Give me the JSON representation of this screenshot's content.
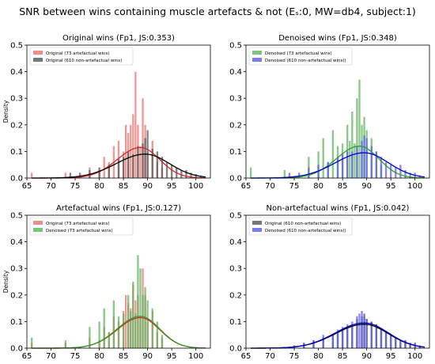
{
  "figure": {
    "title": "SNR between wins containing muscle artefacts & not (Eₛ:0, MW=db4, subject:1)"
  },
  "colors": {
    "original": "#d62728",
    "original_fill": "#e8726f",
    "nonartefact": "#000000",
    "nonartefact_fill": "#555555",
    "denoised": "#2ca02c",
    "denoised_fill": "#5db35d",
    "denoised_non": "#0000cc",
    "denoised_non_fill": "#5b5bea"
  },
  "chart_data": [
    {
      "type": "histogram",
      "title": "Original wins (Fp1, JS:0.353)",
      "ylabel": "Density",
      "xlim": [
        65,
        103
      ],
      "ylim": [
        0,
        0.5
      ],
      "xticks": [
        65,
        70,
        75,
        80,
        85,
        90,
        95,
        100
      ],
      "yticks": [
        0.0,
        0.1,
        0.2,
        0.3,
        0.4,
        0.5
      ],
      "legend_position": "top-left",
      "series": [
        {
          "name": "Original (73 artefactual wins)",
          "color_key": "original",
          "kde": {
            "mean": 88.5,
            "sd": 4.0,
            "peak": 0.115
          },
          "bars": [
            [
              66,
              0.02
            ],
            [
              73,
              0.02
            ],
            [
              78,
              0.04
            ],
            [
              80,
              0.03
            ],
            [
              81,
              0.08
            ],
            [
              82,
              0.06
            ],
            [
              83,
              0.12
            ],
            [
              84,
              0.14
            ],
            [
              85,
              0.1
            ],
            [
              85.5,
              0.2
            ],
            [
              86,
              0.17
            ],
            [
              86.5,
              0.2
            ],
            [
              87,
              0.24
            ],
            [
              87.5,
              0.4
            ],
            [
              88,
              0.2
            ],
            [
              88.5,
              0.12
            ],
            [
              89,
              0.3
            ],
            [
              89.5,
              0.2
            ],
            [
              90,
              0.1
            ],
            [
              91,
              0.14
            ],
            [
              92,
              0.06
            ],
            [
              93,
              0.04
            ]
          ]
        },
        {
          "name": "Original (610 non-artefactual wins)",
          "color_key": "nonartefact",
          "kde": {
            "mean": 89.5,
            "sd": 5.0,
            "peak": 0.09
          },
          "bars": [
            [
              74,
              0.02
            ],
            [
              76,
              0.02
            ],
            [
              78,
              0.03
            ],
            [
              80,
              0.04
            ],
            [
              82,
              0.05
            ],
            [
              84,
              0.07
            ],
            [
              85,
              0.08
            ],
            [
              86,
              0.1
            ],
            [
              87,
              0.09
            ],
            [
              88,
              0.12
            ],
            [
              89,
              0.13
            ],
            [
              89.5,
              0.15
            ],
            [
              90,
              0.18
            ],
            [
              91,
              0.11
            ],
            [
              92,
              0.1
            ],
            [
              93,
              0.08
            ],
            [
              94,
              0.06
            ],
            [
              95,
              0.05
            ],
            [
              96,
              0.04
            ],
            [
              97,
              0.03
            ],
            [
              98,
              0.03
            ],
            [
              99,
              0.02
            ],
            [
              100,
              0.015
            ],
            [
              101,
              0.01
            ]
          ]
        }
      ]
    },
    {
      "type": "histogram",
      "title": "Denoised wins (Fp1, JS:0.348)",
      "ylabel": "",
      "xlim": [
        65,
        103
      ],
      "ylim": [
        0,
        0.5
      ],
      "xticks": [
        65,
        70,
        75,
        80,
        85,
        90,
        95,
        100
      ],
      "yticks": [
        0.0,
        0.1,
        0.2,
        0.3,
        0.4,
        0.5
      ],
      "legend_position": "top-left",
      "series": [
        {
          "name": "Denoised (73 artefactual wins)",
          "color_key": "denoised",
          "kde": {
            "mean": 88.5,
            "sd": 4.0,
            "peak": 0.12
          },
          "bars": [
            [
              66,
              0.04
            ],
            [
              73,
              0.03
            ],
            [
              78,
              0.08
            ],
            [
              80,
              0.1
            ],
            [
              81,
              0.15
            ],
            [
              82,
              0.06
            ],
            [
              83,
              0.18
            ],
            [
              84,
              0.12
            ],
            [
              85,
              0.13
            ],
            [
              86,
              0.2
            ],
            [
              86.5,
              0.14
            ],
            [
              87,
              0.25
            ],
            [
              87.5,
              0.13
            ],
            [
              88,
              0.3
            ],
            [
              88.5,
              0.37
            ],
            [
              89,
              0.2
            ],
            [
              89.5,
              0.23
            ],
            [
              90,
              0.18
            ],
            [
              91,
              0.15
            ],
            [
              92,
              0.1
            ],
            [
              93,
              0.05
            ]
          ]
        },
        {
          "name": "Denoised (610 non-artefactual wins))",
          "color_key": "denoised_non",
          "kde": {
            "mean": 89.5,
            "sd": 5.0,
            "peak": 0.095
          },
          "bars": [
            [
              74,
              0.02
            ],
            [
              76,
              0.02
            ],
            [
              78,
              0.04
            ],
            [
              80,
              0.05
            ],
            [
              82,
              0.06
            ],
            [
              84,
              0.08
            ],
            [
              85,
              0.09
            ],
            [
              86,
              0.1
            ],
            [
              87,
              0.1
            ],
            [
              88,
              0.12
            ],
            [
              89,
              0.14
            ],
            [
              89.5,
              0.16
            ],
            [
              90,
              0.15
            ],
            [
              91,
              0.12
            ],
            [
              92,
              0.1
            ],
            [
              93,
              0.08
            ],
            [
              94,
              0.06
            ],
            [
              95,
              0.05
            ],
            [
              96,
              0.04
            ],
            [
              97,
              0.05
            ],
            [
              98,
              0.03
            ],
            [
              99,
              0.02
            ],
            [
              100,
              0.02
            ],
            [
              101,
              0.01
            ]
          ]
        }
      ]
    },
    {
      "type": "histogram",
      "title": "Artefactual wins (Fp1, JS:0.127)",
      "ylabel": "Density",
      "xlim": [
        65,
        103
      ],
      "ylim": [
        0,
        0.5
      ],
      "xticks": [
        65,
        70,
        75,
        80,
        85,
        90,
        95,
        100
      ],
      "yticks": [
        0.0,
        0.1,
        0.2,
        0.3,
        0.4,
        0.5
      ],
      "legend_position": "top-left",
      "series": [
        {
          "name": "Original (73 artefactual wins)",
          "color_key": "original",
          "kde": {
            "mean": 88.5,
            "sd": 4.0,
            "peak": 0.115
          },
          "bars": [
            [
              66,
              0.02
            ],
            [
              73,
              0.02
            ],
            [
              78,
              0.04
            ],
            [
              80,
              0.03
            ],
            [
              81,
              0.08
            ],
            [
              82,
              0.06
            ],
            [
              83,
              0.12
            ],
            [
              84,
              0.1
            ],
            [
              85,
              0.14
            ],
            [
              85.5,
              0.2
            ],
            [
              86,
              0.17
            ],
            [
              86.5,
              0.15
            ],
            [
              87,
              0.24
            ],
            [
              87.5,
              0.18
            ],
            [
              88,
              0.2
            ],
            [
              88.5,
              0.12
            ],
            [
              89,
              0.3
            ],
            [
              89.5,
              0.2
            ],
            [
              90,
              0.1
            ],
            [
              91,
              0.14
            ],
            [
              92,
              0.06
            ],
            [
              93,
              0.04
            ]
          ]
        },
        {
          "name": "Denoised (73 artefactual wins)",
          "color_key": "denoised",
          "kde": {
            "mean": 88.5,
            "sd": 4.0,
            "peak": 0.12
          },
          "bars": [
            [
              66,
              0.04
            ],
            [
              73,
              0.03
            ],
            [
              78,
              0.08
            ],
            [
              80,
              0.1
            ],
            [
              81,
              0.15
            ],
            [
              82,
              0.06
            ],
            [
              83,
              0.18
            ],
            [
              84,
              0.12
            ],
            [
              85,
              0.13
            ],
            [
              86,
              0.2
            ],
            [
              86.5,
              0.14
            ],
            [
              87,
              0.25
            ],
            [
              87.5,
              0.13
            ],
            [
              88,
              0.35
            ],
            [
              88.5,
              0.3
            ],
            [
              89,
              0.2
            ],
            [
              89.5,
              0.23
            ],
            [
              90,
              0.18
            ],
            [
              91,
              0.15
            ],
            [
              92,
              0.1
            ],
            [
              93,
              0.05
            ]
          ]
        }
      ]
    },
    {
      "type": "histogram",
      "title": "Non-artefactual wins (Fp1, JS:0.042)",
      "ylabel": "",
      "xlim": [
        65,
        103
      ],
      "ylim": [
        0,
        0.5
      ],
      "xticks": [
        65,
        70,
        75,
        80,
        85,
        90,
        95,
        100
      ],
      "yticks": [
        0.0,
        0.1,
        0.2,
        0.3,
        0.4,
        0.5
      ],
      "legend_position": "top-left",
      "series": [
        {
          "name": "Original (610 non-artefactual wins)",
          "color_key": "nonartefact",
          "kde": {
            "mean": 89.5,
            "sd": 5.0,
            "peak": 0.09
          },
          "bars": [
            [
              75,
              0.01
            ],
            [
              77,
              0.02
            ],
            [
              79,
              0.03
            ],
            [
              81,
              0.04
            ],
            [
              83,
              0.05
            ],
            [
              84,
              0.06
            ],
            [
              85,
              0.07
            ],
            [
              86,
              0.08
            ],
            [
              87,
              0.09
            ],
            [
              88,
              0.11
            ],
            [
              89,
              0.12
            ],
            [
              89.5,
              0.13
            ],
            [
              90,
              0.11
            ],
            [
              91,
              0.1
            ],
            [
              92,
              0.09
            ],
            [
              93,
              0.07
            ],
            [
              94,
              0.06
            ],
            [
              95,
              0.05
            ],
            [
              96,
              0.04
            ],
            [
              97,
              0.03
            ],
            [
              98,
              0.03
            ],
            [
              99,
              0.02
            ],
            [
              100,
              0.02
            ],
            [
              101,
              0.01
            ]
          ]
        },
        {
          "name": "Denoised (610 non-artefactual wins))",
          "color_key": "denoised_non",
          "kde": {
            "mean": 89.5,
            "sd": 5.0,
            "peak": 0.095
          },
          "bars": [
            [
              75,
              0.01
            ],
            [
              77,
              0.02
            ],
            [
              79,
              0.03
            ],
            [
              81,
              0.05
            ],
            [
              83,
              0.05
            ],
            [
              84,
              0.07
            ],
            [
              85,
              0.08
            ],
            [
              86,
              0.09
            ],
            [
              87,
              0.1
            ],
            [
              88,
              0.12
            ],
            [
              88.5,
              0.13
            ],
            [
              89,
              0.14
            ],
            [
              89.5,
              0.12
            ],
            [
              90,
              0.11
            ],
            [
              91,
              0.1
            ],
            [
              92,
              0.09
            ],
            [
              93,
              0.07
            ],
            [
              94,
              0.06
            ],
            [
              95,
              0.05
            ],
            [
              96,
              0.04
            ],
            [
              97,
              0.03
            ],
            [
              98,
              0.03
            ],
            [
              99,
              0.02
            ],
            [
              100,
              0.02
            ],
            [
              101,
              0.01
            ]
          ]
        }
      ]
    }
  ]
}
